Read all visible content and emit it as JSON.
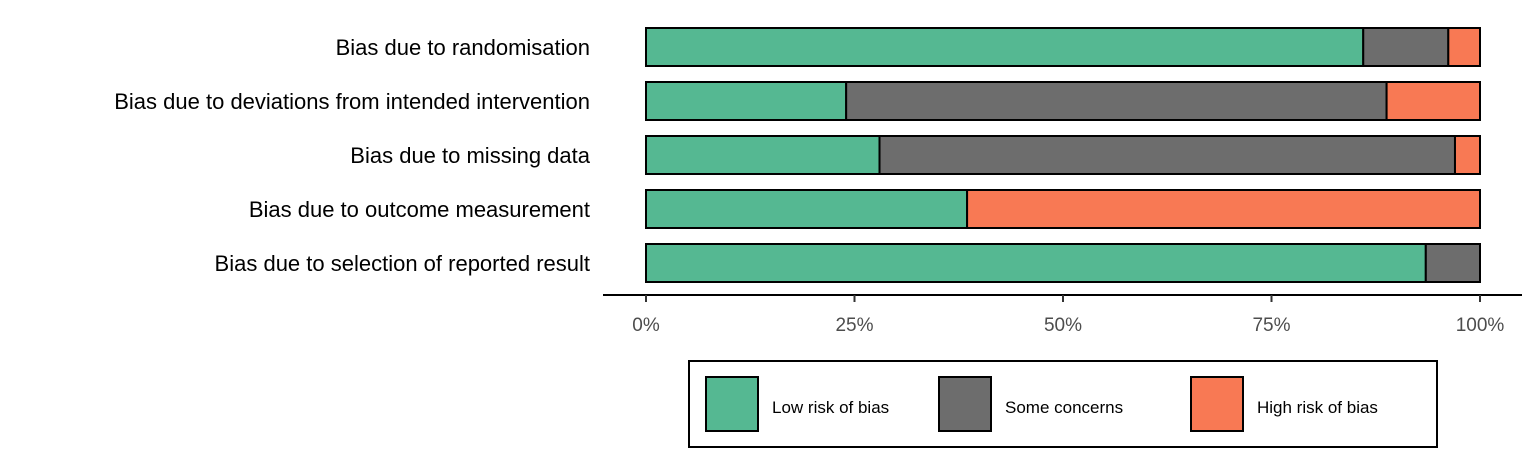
{
  "chart_data": {
    "type": "bar",
    "orientation": "horizontal",
    "stacked": true,
    "categories": [
      "Bias due to randomisation",
      "Bias due to deviations from intended intervention",
      "Bias due to missing data",
      "Bias due to outcome measurement",
      "Bias due to selection of reported result"
    ],
    "series": [
      {
        "name": "Low risk of bias",
        "color": "#55b892",
        "values": [
          86,
          24,
          28,
          38.5,
          93.5
        ]
      },
      {
        "name": "Some concerns",
        "color": "#6d6d6d",
        "values": [
          10.2,
          64.8,
          69,
          0,
          6.5
        ]
      },
      {
        "name": "High risk of bias",
        "color": "#f87954",
        "values": [
          3.8,
          11.2,
          3,
          61.5,
          0
        ]
      }
    ],
    "xlim": [
      0,
      100
    ],
    "xticks": [
      0,
      25,
      50,
      75,
      100
    ],
    "xtick_labels": [
      "0%",
      "25%",
      "50%",
      "75%",
      "100%"
    ],
    "grid": false,
    "legend_position": "bottom"
  }
}
